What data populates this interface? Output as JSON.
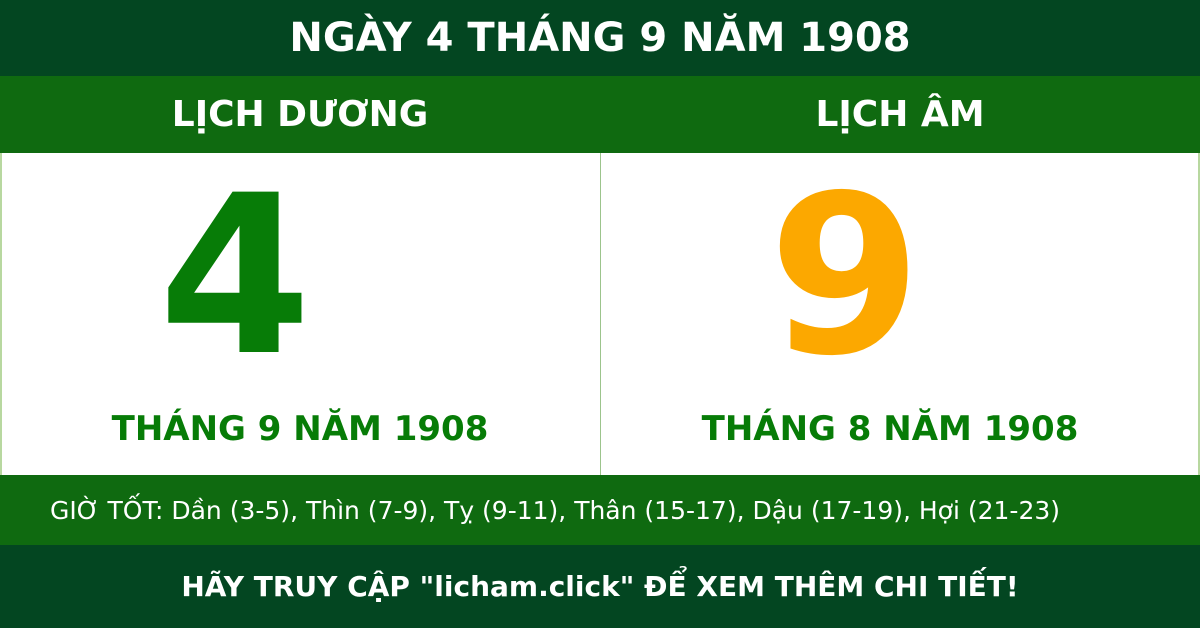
{
  "title": "NGÀY 4 THÁNG 9 NĂM 1908",
  "solar": {
    "heading": "LỊCH DƯƠNG",
    "day": "4",
    "month_year": "THÁNG 9 NĂM 1908"
  },
  "lunar": {
    "heading": "LỊCH ÂM",
    "day": "9",
    "month_year": "THÁNG 8 NĂM 1908"
  },
  "good_hours": "GIỜ TỐT: Dần (3-5), Thìn (7-9), Tỵ (9-11), Thân (15-17), Dậu (17-19), Hợi (21-23)",
  "footer": "HÃY TRUY CẬP \"licham.click\" ĐỂ XEM THÊM CHI TIẾT!",
  "colors": {
    "dark_green": "#034621",
    "green": "#0f6a10",
    "solar_accent": "#077c07",
    "lunar_accent": "#fca800"
  }
}
